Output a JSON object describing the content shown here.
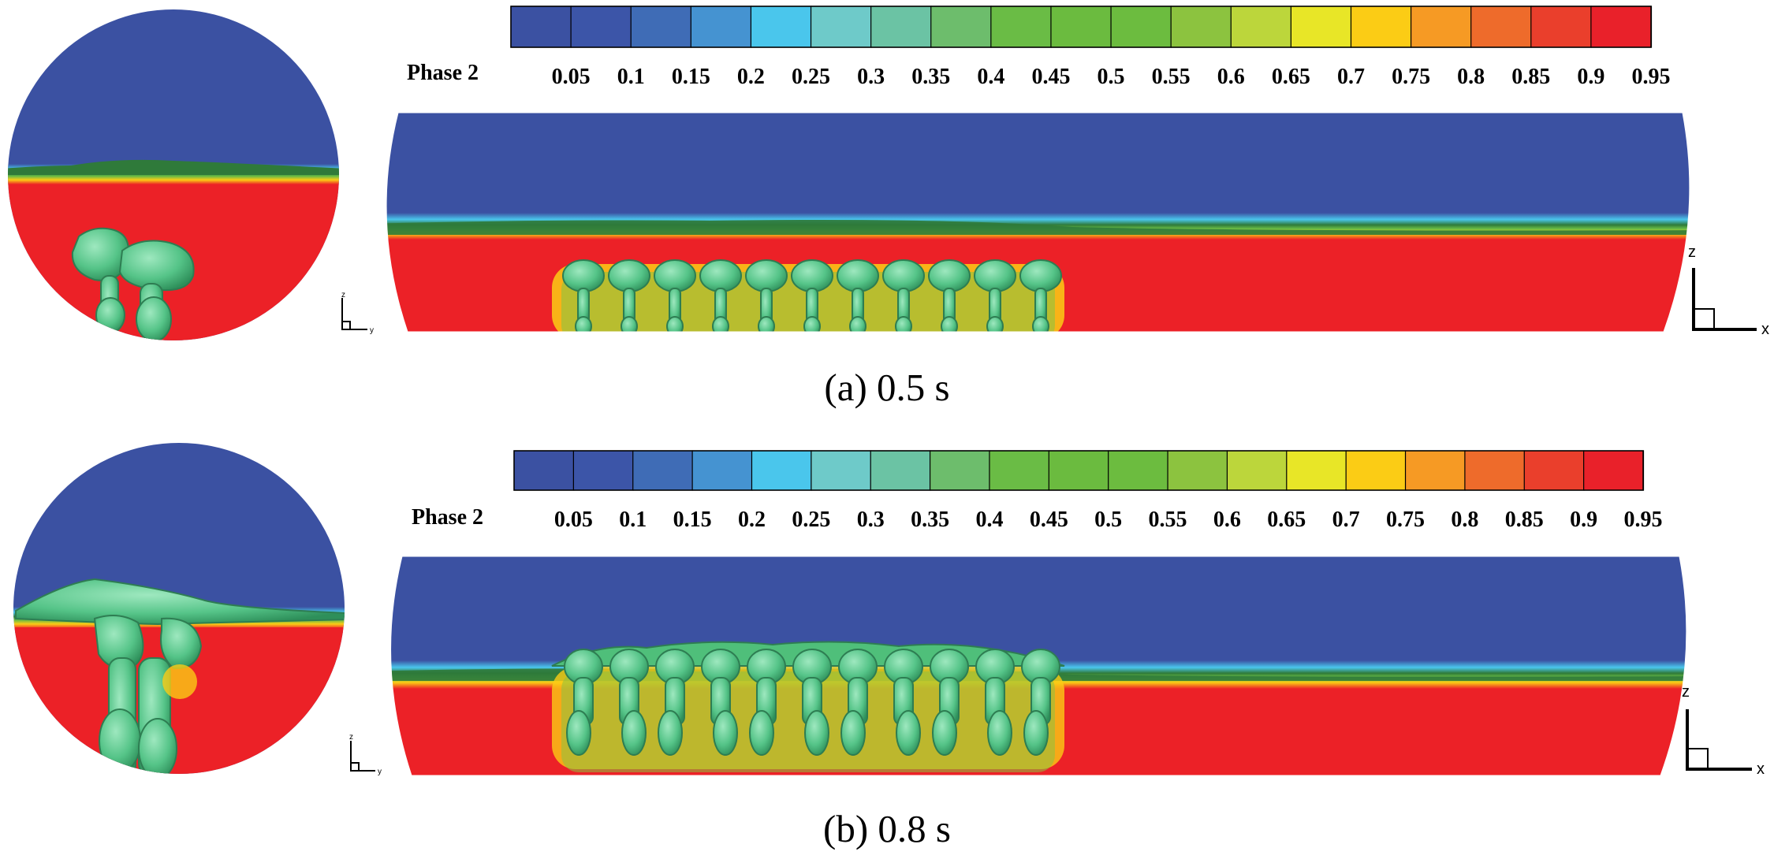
{
  "panels": [
    {
      "caption": "(a) 0.5 s",
      "colorbar": {
        "title": "Phase 2",
        "ticks": [
          "0.05",
          "0.1",
          "0.15",
          "0.2",
          "0.25",
          "0.3",
          "0.35",
          "0.4",
          "0.45",
          "0.5",
          "0.55",
          "0.6",
          "0.65",
          "0.7",
          "0.75",
          "0.8",
          "0.85",
          "0.9",
          "0.95"
        ]
      },
      "axes_small": {
        "vertical": "z",
        "horizontal": "y"
      },
      "axes_large": {
        "vertical": "z",
        "horizontal": "x"
      },
      "plume_count": 11
    },
    {
      "caption": "(b) 0.8 s",
      "colorbar": {
        "title": "Phase 2",
        "ticks": [
          "0.05",
          "0.1",
          "0.15",
          "0.2",
          "0.25",
          "0.3",
          "0.35",
          "0.4",
          "0.45",
          "0.5",
          "0.55",
          "0.6",
          "0.65",
          "0.7",
          "0.75",
          "0.8",
          "0.85",
          "0.9",
          "0.95"
        ]
      },
      "axes_small": {
        "vertical": "z",
        "horizontal": "y"
      },
      "axes_large": {
        "vertical": "z",
        "horizontal": "x"
      },
      "plume_count": 11
    }
  ],
  "palette": [
    "#3b51a2",
    "#3c55a8",
    "#3f6cb6",
    "#4593d1",
    "#4ac6ec",
    "#6ecac9",
    "#6bc3a4",
    "#6dbd6c",
    "#6abc45",
    "#6bbb3f",
    "#6cbc3f",
    "#8cc33f",
    "#bcd63b",
    "#e8e627",
    "#fbcc15",
    "#f69a24",
    "#ee6b2b",
    "#ea3f2c",
    "#e9212a"
  ],
  "colors": {
    "gas": "#3b51a2",
    "liquid": "#ec2127",
    "bubble": "#5fc98b"
  }
}
